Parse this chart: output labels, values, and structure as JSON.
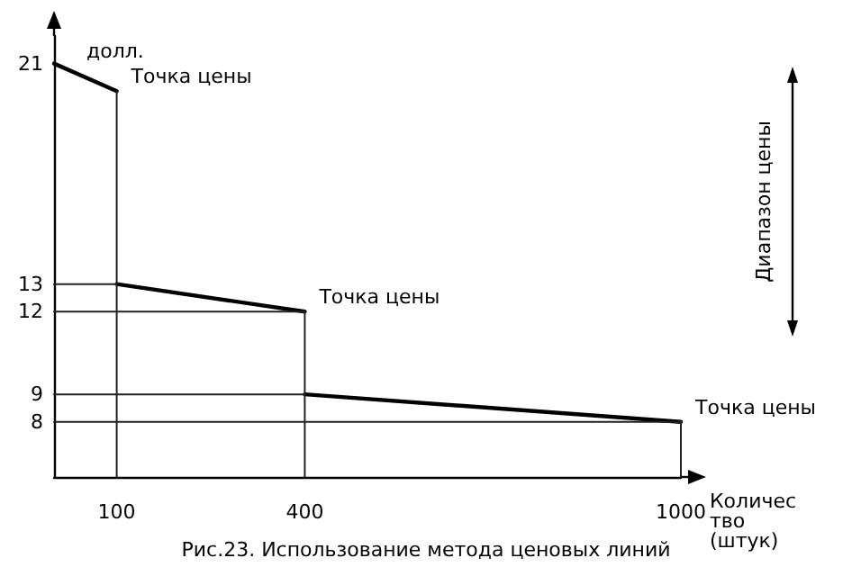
{
  "chart_data": {
    "type": "line",
    "title": "Рис.23. Использование метода ценовых линий",
    "xlabel": "Количество (штук)",
    "ylabel": "долл.",
    "xlim": [
      0,
      1000
    ],
    "xticks": [
      100,
      400,
      1000
    ],
    "ylim": [
      6,
      22
    ],
    "yticks": [
      8,
      9,
      12,
      13,
      21
    ],
    "grid": false,
    "marker": "none",
    "line_style": "solid",
    "series": [
      {
        "color": "#000000",
        "x": [
          0,
          100
        ],
        "values": [
          21,
          20
        ]
      },
      {
        "color": "#000000",
        "x": [
          100,
          400
        ],
        "values": [
          13,
          12
        ]
      },
      {
        "color": "#000000",
        "x": [
          400,
          1000
        ],
        "values": [
          9,
          8
        ]
      },
      {
        "color": "#222222",
        "x": [
          0,
          100,
          100,
          100
        ],
        "values": [
          13,
          13,
          20,
          6
        ]
      },
      {
        "color": "#222222",
        "x": [
          0,
          400,
          400,
          400,
          0
        ],
        "values": [
          12,
          12,
          6,
          9,
          9
        ]
      },
      {
        "color": "#222222",
        "x": [
          0,
          1000,
          1000
        ],
        "values": [
          8,
          8,
          6
        ]
      }
    ],
    "annotations": [
      {
        "text": "Точка цены",
        "x": 100,
        "y": 20
      },
      {
        "text": "Точка цены",
        "x": 400,
        "y": 12
      },
      {
        "text": "Точка цены",
        "x": 1000,
        "y": 8
      },
      "Диапазон цены"
    ]
  }
}
